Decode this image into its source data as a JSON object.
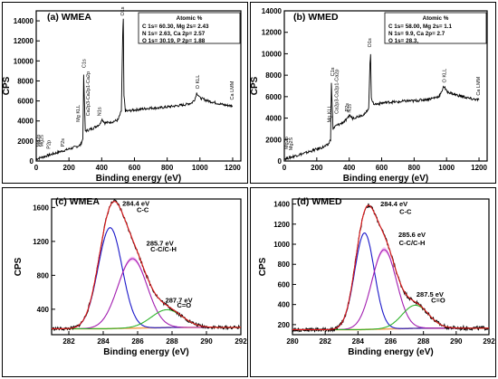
{
  "colors": {
    "survey_line": "#000000",
    "fit_red": "#e0191b",
    "c_c": "#1a17c9",
    "c_ch": "#a21eb0",
    "c_o": "#2db32a",
    "background": "#f3a45e",
    "magenta_band": "#ea58e8"
  },
  "chart_data": [
    {
      "type": "line",
      "title": "(a) WMEA",
      "xlabel": "Binding energy (eV)",
      "ylabel": "CPS",
      "xlim": [
        0,
        1250
      ],
      "ylim": [
        0,
        15000
      ],
      "xticks": [
        0,
        200,
        400,
        600,
        800,
        1000,
        1200
      ],
      "yticks": [
        0,
        2000,
        4000,
        6000,
        8000,
        10000,
        12000,
        14000
      ],
      "grid": false,
      "series": [
        {
          "x": [
            0,
            40,
            80,
            120,
            160,
            200,
            240,
            270,
            285,
            290,
            300,
            320,
            350,
            390,
            400,
            420,
            460,
            500,
            520,
            528,
            532,
            536,
            545,
            560,
            600,
            650,
            700,
            750,
            800,
            850,
            900,
            950,
            970,
            980,
            990,
            1000,
            1050,
            1100,
            1150,
            1200
          ],
          "y": [
            200,
            400,
            600,
            800,
            1000,
            1200,
            1400,
            1600,
            2200,
            8500,
            3000,
            3100,
            3300,
            3700,
            4200,
            3800,
            3900,
            4100,
            5000,
            12500,
            14200,
            6500,
            5000,
            5000,
            5100,
            5200,
            5300,
            5300,
            5400,
            5500,
            5600,
            5800,
            6200,
            6800,
            6600,
            6300,
            6000,
            5800,
            5600,
            5500
          ]
        }
      ],
      "peak_labels": [
        "Mg2p",
        "Mg2s",
        "P2p",
        "P2s",
        "Mg KLL",
        "C1s",
        "Ca2p3-Ca2p1-Ca2p",
        "N1s",
        "O1s",
        "O KLL",
        "Ca LMM"
      ],
      "box": {
        "header": "Atomic %",
        "lines": [
          "C  1s= 60.30, Mg 2s=  2.43",
          "N  1s=  2.63, Ca  2p= 2.57",
          "O  1s= 30.19, P  2p=  1.88"
        ]
      }
    },
    {
      "type": "line",
      "title": "(b) WMED",
      "xlabel": "Binding energy (eV)",
      "ylabel": "CPS",
      "xlim": [
        0,
        1250
      ],
      "ylim": [
        0,
        14000
      ],
      "xticks": [
        0,
        200,
        400,
        600,
        800,
        1000,
        1200
      ],
      "yticks": [
        0,
        2000,
        4000,
        6000,
        8000,
        10000,
        12000,
        14000
      ],
      "grid": false,
      "series": [
        {
          "x": [
            0,
            40,
            80,
            120,
            160,
            200,
            240,
            270,
            285,
            290,
            300,
            320,
            350,
            390,
            400,
            420,
            460,
            500,
            520,
            528,
            532,
            536,
            545,
            560,
            600,
            650,
            700,
            750,
            800,
            850,
            900,
            950,
            970,
            980,
            990,
            1000,
            1050,
            1100,
            1150,
            1200
          ],
          "y": [
            200,
            350,
            550,
            700,
            900,
            1100,
            1300,
            1500,
            2000,
            7200,
            3000,
            3300,
            3500,
            3900,
            4300,
            4000,
            4200,
            4400,
            5000,
            9000,
            10000,
            6000,
            5400,
            5300,
            5400,
            5500,
            5500,
            5600,
            5600,
            5700,
            5800,
            6000,
            6400,
            7000,
            6800,
            6500,
            6200,
            6000,
            5800,
            5700
          ]
        }
      ],
      "peak_labels": [
        "Mg2p",
        "Mg2S",
        "Mg KLL",
        "C1s",
        "Ca2p3-Ca2p1-Ca2p",
        "N1s",
        "P2s",
        "O1s",
        "O KLL",
        "Ca LMM"
      ],
      "box": {
        "header": "Atomic %",
        "lines": [
          "C  1s= 58.00, Mg 2s=  1.1",
          "N  1s=  9.9, Ca  2p=  2.7",
          "O  1s= 28.3,"
        ]
      }
    },
    {
      "type": "line",
      "title": "(c) WMEA",
      "xlabel": "Binding energy (eV)",
      "ylabel": "CPS",
      "xlim": [
        281,
        292
      ],
      "ylim": [
        100,
        1700
      ],
      "xticks": [
        282,
        284,
        286,
        288,
        290,
        292
      ],
      "yticks": [
        400,
        800,
        1200,
        1600
      ],
      "grid": false,
      "components": [
        {
          "center": 284.4,
          "amp": 1190,
          "sigma": 0.7,
          "color": "c_c"
        },
        {
          "center": 285.7,
          "amp": 820,
          "sigma": 0.85,
          "color": "c_ch"
        },
        {
          "center": 287.7,
          "amp": 210,
          "sigma": 0.9,
          "color": "c_o"
        }
      ],
      "baseline": 170,
      "annotations": [
        {
          "value": "284.4 eV",
          "label": "C-C"
        },
        {
          "value": "285.7 eV",
          "label": "C-C/C-H"
        },
        {
          "value": "287.7 eV",
          "label": "C=O"
        }
      ]
    },
    {
      "type": "line",
      "title": "(d) WMED",
      "xlabel": "Binding energy (eV)",
      "ylabel": "CPS",
      "xlim": [
        280,
        292
      ],
      "ylim": [
        100,
        1450
      ],
      "xticks": [
        280,
        282,
        284,
        286,
        288,
        290,
        292
      ],
      "yticks": [
        200,
        400,
        600,
        800,
        1000,
        1200,
        1400
      ],
      "grid": false,
      "components": [
        {
          "center": 284.4,
          "amp": 960,
          "sigma": 0.6,
          "color": "c_c"
        },
        {
          "center": 285.6,
          "amp": 790,
          "sigma": 0.75,
          "color": "c_ch"
        },
        {
          "center": 287.5,
          "amp": 230,
          "sigma": 0.8,
          "color": "c_o"
        }
      ],
      "baseline": 150,
      "annotations": [
        {
          "value": "284.4 eV",
          "label": "C-C"
        },
        {
          "value": "285.6 eV",
          "label": "C-C/C-H"
        },
        {
          "value": "287.5 eV",
          "label": "C=O"
        }
      ]
    }
  ]
}
